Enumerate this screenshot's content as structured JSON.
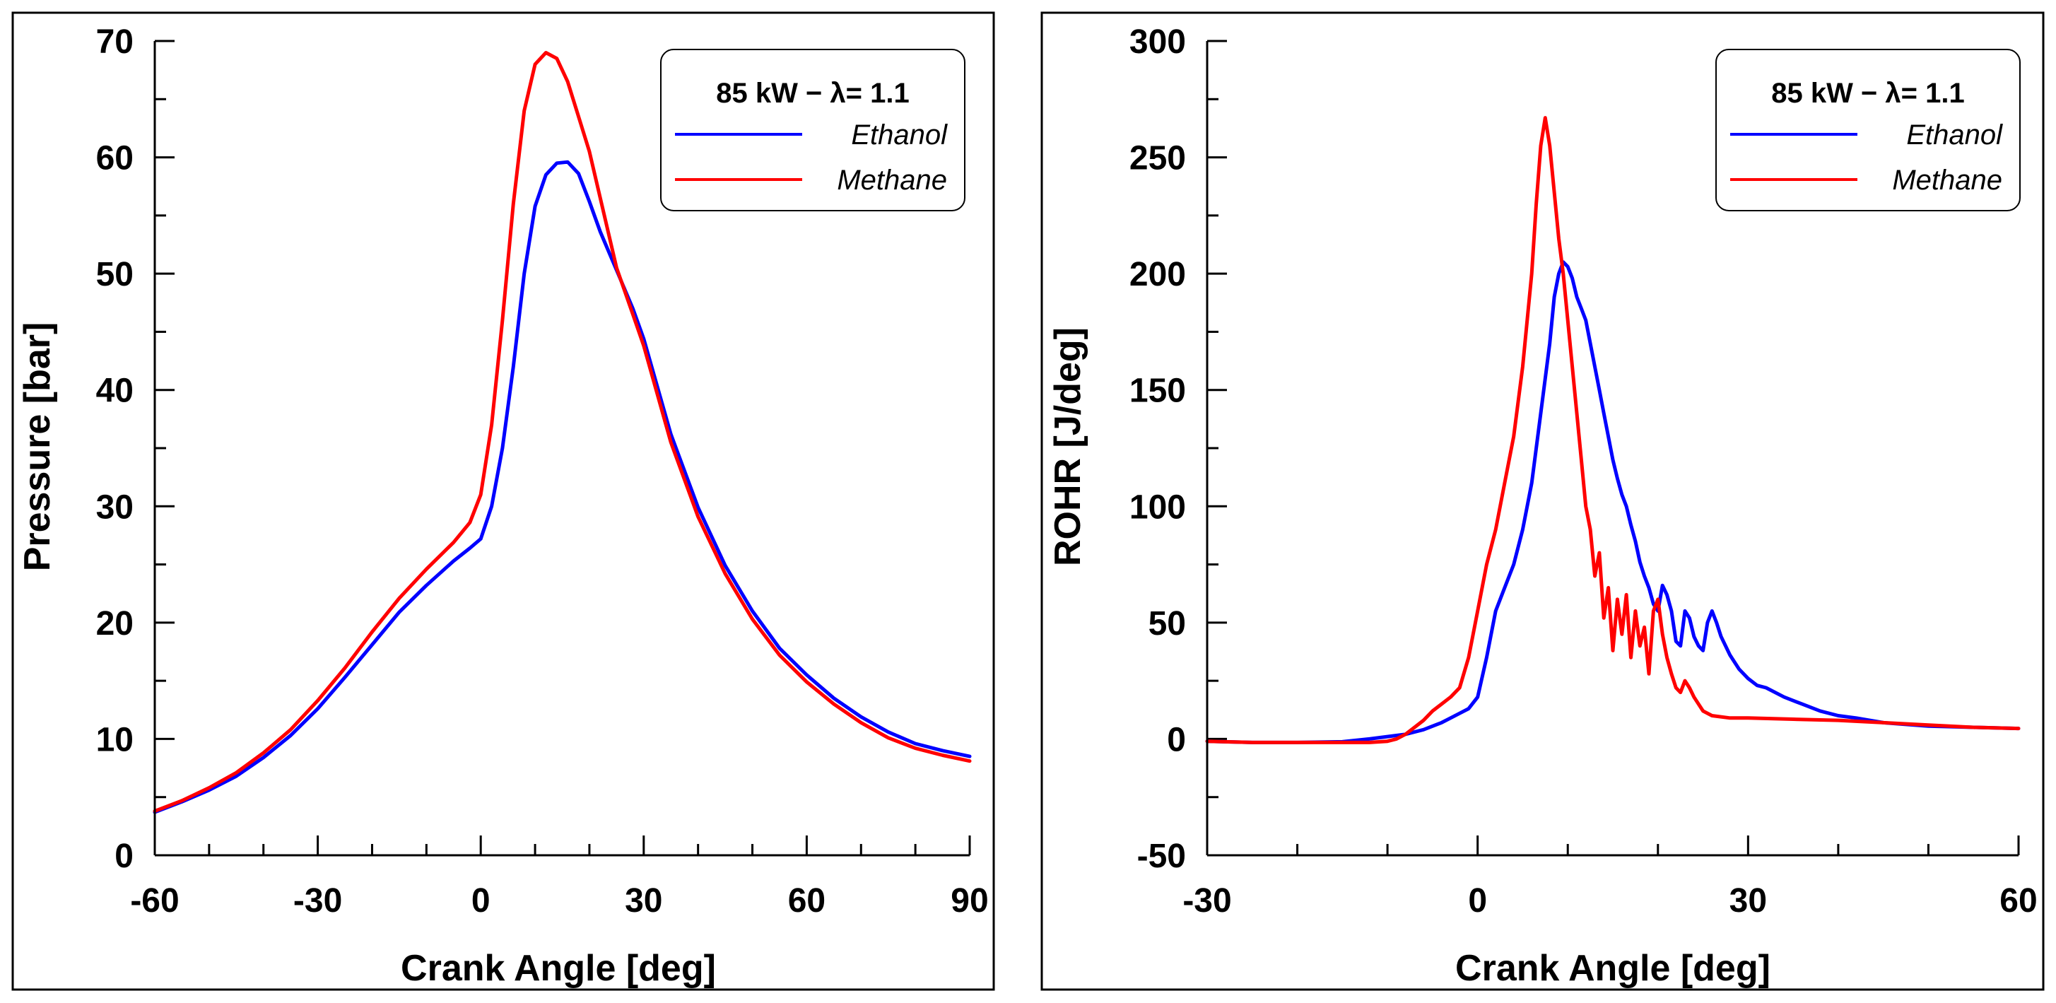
{
  "chart_data": [
    {
      "id": "pressure",
      "type": "line",
      "title": "",
      "xlabel": "Crank Angle [deg]",
      "ylabel": "Pressure [bar]",
      "xlim": [
        -60,
        90
      ],
      "ylim": [
        0,
        70
      ],
      "xticks": [
        -60,
        -30,
        0,
        30,
        60,
        90
      ],
      "xtick_labels": [
        "-60",
        "-30",
        "0",
        "30",
        "60",
        "90"
      ],
      "yticks": [
        0,
        10,
        20,
        30,
        40,
        50,
        60,
        70
      ],
      "ytick_labels": [
        "0",
        "10",
        "20",
        "30",
        "40",
        "50",
        "60",
        "70"
      ],
      "x_minor_step": 10,
      "y_minor_step": 5,
      "grid": false,
      "legend": {
        "title": "85 kW − λ= 1.1",
        "placement": "top-right",
        "entries": [
          "Ethanol",
          "Methane"
        ]
      },
      "series": [
        {
          "name": "Ethanol",
          "color": "#0000ff",
          "x": [
            -60,
            -55,
            -50,
            -45,
            -40,
            -35,
            -30,
            -25,
            -20,
            -15,
            -10,
            -5,
            -2,
            0,
            2,
            4,
            6,
            8,
            10,
            12,
            14,
            16,
            18,
            20,
            22,
            25,
            28,
            30,
            35,
            40,
            45,
            50,
            55,
            60,
            65,
            70,
            75,
            80,
            85,
            90
          ],
          "y": [
            3.7,
            4.6,
            5.6,
            6.8,
            8.4,
            10.3,
            12.6,
            15.3,
            18.1,
            20.9,
            23.2,
            25.3,
            26.4,
            27.2,
            30.0,
            35.0,
            42.0,
            50.0,
            55.8,
            58.5,
            59.5,
            59.6,
            58.6,
            56.2,
            53.6,
            50.3,
            47.0,
            44.4,
            36.2,
            29.9,
            24.9,
            21.0,
            17.8,
            15.5,
            13.5,
            11.9,
            10.6,
            9.6,
            9.0,
            8.5
          ]
        },
        {
          "name": "Methane",
          "color": "#ff0000",
          "x": [
            -60,
            -55,
            -50,
            -45,
            -40,
            -35,
            -30,
            -25,
            -20,
            -15,
            -10,
            -5,
            -2,
            0,
            2,
            4,
            6,
            8,
            10,
            12,
            14,
            16,
            18,
            20,
            22,
            25,
            28,
            30,
            35,
            40,
            45,
            50,
            55,
            60,
            65,
            70,
            75,
            80,
            85,
            90
          ],
          "y": [
            3.8,
            4.7,
            5.8,
            7.1,
            8.8,
            10.8,
            13.3,
            16.1,
            19.2,
            22.1,
            24.6,
            26.9,
            28.6,
            31.0,
            37.0,
            46.0,
            56.0,
            64.0,
            68.0,
            69.0,
            68.5,
            66.5,
            63.5,
            60.5,
            56.5,
            50.5,
            46.5,
            43.8,
            35.5,
            29.1,
            24.2,
            20.3,
            17.2,
            14.9,
            13.0,
            11.4,
            10.1,
            9.2,
            8.6,
            8.1
          ]
        }
      ]
    },
    {
      "id": "rohr",
      "type": "line",
      "title": "",
      "xlabel": "Crank Angle [deg]",
      "ylabel": "ROHR [J/deg]",
      "xlim": [
        -30,
        60
      ],
      "ylim": [
        -50,
        300
      ],
      "xticks": [
        -30,
        0,
        30,
        60
      ],
      "xtick_labels": [
        "-30",
        "0",
        "30",
        "60"
      ],
      "yticks": [
        -50,
        0,
        50,
        100,
        150,
        200,
        250,
        300
      ],
      "ytick_labels": [
        "-50",
        "0",
        "50",
        "100",
        "150",
        "200",
        "250",
        "300"
      ],
      "x_minor_step": 10,
      "y_minor_step": 25,
      "grid": false,
      "legend": {
        "title": "85 kW − λ= 1.1",
        "placement": "top-right",
        "entries": [
          "Ethanol",
          "Methane"
        ]
      },
      "series": [
        {
          "name": "Ethanol",
          "color": "#0000ff",
          "x": [
            -30,
            -25,
            -20,
            -15,
            -12,
            -10,
            -8,
            -6,
            -4,
            -2,
            -1,
            0,
            1,
            2,
            3,
            4,
            5,
            6,
            7,
            8,
            8.5,
            9,
            9.5,
            10,
            10.5,
            11,
            11.5,
            12,
            12.5,
            13,
            13.5,
            14,
            14.5,
            15,
            15.5,
            16,
            16.5,
            17,
            17.5,
            18,
            18.5,
            19,
            19.5,
            20,
            20.5,
            21,
            21.5,
            22,
            22.5,
            23,
            23.5,
            24,
            24.5,
            25,
            25.5,
            26,
            26.5,
            27,
            28,
            29,
            30,
            31,
            32,
            34,
            36,
            38,
            40,
            42,
            45,
            50,
            55,
            60
          ],
          "y": [
            -1,
            -1.5,
            -1.5,
            -1.2,
            0,
            1,
            2,
            4,
            7,
            11,
            13,
            18,
            35,
            55,
            65,
            75,
            90,
            110,
            140,
            170,
            190,
            200,
            205,
            203,
            198,
            190,
            185,
            180,
            170,
            160,
            150,
            140,
            130,
            120,
            112,
            105,
            100,
            92,
            85,
            76,
            70,
            65,
            58,
            55,
            66,
            62,
            55,
            42,
            40,
            55,
            52,
            44,
            40,
            38,
            50,
            55,
            50,
            44,
            36,
            30,
            26,
            23,
            22,
            18,
            15,
            12,
            10,
            9,
            7,
            5.5,
            5,
            4.5
          ]
        },
        {
          "name": "Methane",
          "color": "#ff0000",
          "x": [
            -30,
            -25,
            -20,
            -15,
            -12,
            -10,
            -9,
            -8,
            -7,
            -6,
            -5,
            -4,
            -3,
            -2,
            -1,
            0,
            1,
            2,
            3,
            4,
            5,
            6,
            6.5,
            7,
            7.5,
            8,
            8.5,
            9,
            9.5,
            10,
            10.5,
            11,
            11.5,
            12,
            12.5,
            13,
            13.5,
            14,
            14.5,
            15,
            15.5,
            16,
            16.5,
            17,
            17.5,
            18,
            18.5,
            19,
            19.5,
            20,
            20.5,
            21,
            21.5,
            22,
            22.5,
            23,
            23.5,
            24,
            25,
            26,
            28,
            30,
            35,
            40,
            45,
            50,
            55,
            60
          ],
          "y": [
            -1,
            -1.5,
            -1.5,
            -1.5,
            -1.5,
            -1,
            0,
            2,
            5,
            8,
            12,
            15,
            18,
            22,
            35,
            55,
            75,
            90,
            110,
            130,
            160,
            200,
            230,
            255,
            267,
            255,
            235,
            215,
            200,
            180,
            160,
            140,
            120,
            100,
            90,
            70,
            80,
            52,
            65,
            38,
            60,
            45,
            62,
            35,
            55,
            40,
            48,
            28,
            55,
            60,
            45,
            35,
            28,
            22,
            20,
            25,
            22,
            18,
            12,
            10,
            9,
            9,
            8.5,
            8,
            7,
            6,
            5,
            4.5
          ]
        }
      ]
    }
  ]
}
